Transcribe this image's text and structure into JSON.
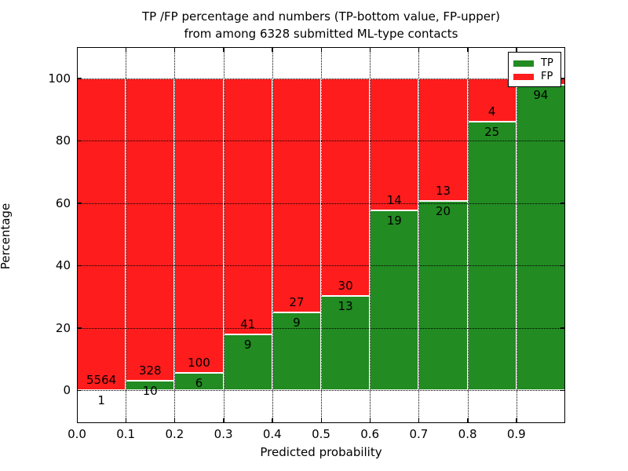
{
  "chart_data": {
    "type": "bar",
    "stacked": true,
    "title_line1": "TP /FP percentage and numbers (TP-bottom value, FP-upper)",
    "title_line2": "from among 6328 submitted ML-type contacts",
    "total_submitted_contacts": 6328,
    "xlabel": "Predicted probability",
    "ylabel": "Percentage",
    "xlim": [
      0.0,
      1.0
    ],
    "ylim": [
      -10.5,
      110
    ],
    "grid": "dotted",
    "yticks": [
      0,
      20,
      40,
      60,
      80,
      100
    ],
    "ytick_labels": [
      "0",
      "20",
      "40",
      "60",
      "80",
      "100"
    ],
    "xticks": [
      0.0,
      0.1,
      0.2,
      0.3,
      0.4,
      0.5,
      0.6,
      0.7,
      0.8,
      0.9
    ],
    "xtick_labels": [
      "0.0",
      "0.1",
      "0.2",
      "0.3",
      "0.4",
      "0.5",
      "0.6",
      "0.7",
      "0.8",
      "0.9"
    ],
    "legend": {
      "position": "upper-right",
      "entries": [
        {
          "label": "TP",
          "color": "#228b22"
        },
        {
          "label": "FP",
          "color": "#ff1c1c"
        }
      ]
    },
    "colors": {
      "tp": "#228b22",
      "fp": "#ff1c1c",
      "bar_edge": "#ffffff",
      "axes": "#000000"
    },
    "bins": [
      {
        "x_start": 0.0,
        "x_end": 0.1,
        "tp_count": 1,
        "fp_count": 5564,
        "tp_label": "1",
        "fp_label": "5564",
        "tp_percent": 0.02,
        "fp_percent": 99.98
      },
      {
        "x_start": 0.1,
        "x_end": 0.2,
        "tp_count": 10,
        "fp_count": 328,
        "tp_label": "10",
        "fp_label": "328",
        "tp_percent": 2.96,
        "fp_percent": 97.04
      },
      {
        "x_start": 0.2,
        "x_end": 0.3,
        "tp_count": 6,
        "fp_count": 100,
        "tp_label": "6",
        "fp_label": "100",
        "tp_percent": 5.66,
        "fp_percent": 94.34
      },
      {
        "x_start": 0.3,
        "x_end": 0.4,
        "tp_count": 9,
        "fp_count": 41,
        "tp_label": "9",
        "fp_label": "41",
        "tp_percent": 18.0,
        "fp_percent": 82.0
      },
      {
        "x_start": 0.4,
        "x_end": 0.5,
        "tp_count": 9,
        "fp_count": 27,
        "tp_label": "9",
        "fp_label": "27",
        "tp_percent": 25.0,
        "fp_percent": 75.0
      },
      {
        "x_start": 0.5,
        "x_end": 0.6,
        "tp_count": 13,
        "fp_count": 30,
        "tp_label": "13",
        "fp_label": "30",
        "tp_percent": 30.23,
        "fp_percent": 69.77
      },
      {
        "x_start": 0.6,
        "x_end": 0.7,
        "tp_count": 19,
        "fp_count": 14,
        "tp_label": "19",
        "fp_label": "14",
        "tp_percent": 57.58,
        "fp_percent": 42.42
      },
      {
        "x_start": 0.7,
        "x_end": 0.8,
        "tp_count": 20,
        "fp_count": 13,
        "tp_label": "20",
        "fp_label": "13",
        "tp_percent": 60.61,
        "fp_percent": 39.39
      },
      {
        "x_start": 0.8,
        "x_end": 0.9,
        "tp_count": 25,
        "fp_count": 4,
        "tp_label": "25",
        "fp_label": "4",
        "tp_percent": 86.21,
        "fp_percent": 13.79
      },
      {
        "x_start": 0.9,
        "x_end": 1.0,
        "tp_count": 94,
        "fp_count": null,
        "tp_label": "94",
        "fp_label": "",
        "tp_percent": 97.9,
        "fp_percent": 2.1
      }
    ]
  }
}
